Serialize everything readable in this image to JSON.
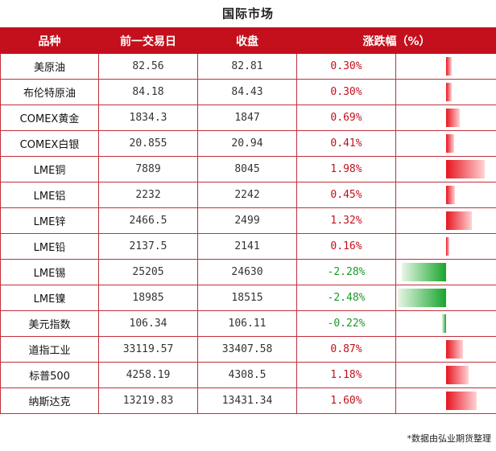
{
  "title": "国际市场",
  "headers": {
    "name": "品种",
    "prev": "前一交易日",
    "close": "收盘",
    "change": "涨跌幅（%）"
  },
  "rows": [
    {
      "name": "美原油",
      "prev": "82.56",
      "close": "82.81",
      "pct": "0.30%",
      "value": 0.3
    },
    {
      "name": "布伦特原油",
      "prev": "84.18",
      "close": "84.43",
      "pct": "0.30%",
      "value": 0.3
    },
    {
      "name": "COMEX黄金",
      "prev": "1834.3",
      "close": "1847",
      "pct": "0.69%",
      "value": 0.69
    },
    {
      "name": "COMEX白银",
      "prev": "20.855",
      "close": "20.94",
      "pct": "0.41%",
      "value": 0.41
    },
    {
      "name": "LME铜",
      "prev": "7889",
      "close": "8045",
      "pct": "1.98%",
      "value": 1.98
    },
    {
      "name": "LME铝",
      "prev": "2232",
      "close": "2242",
      "pct": "0.45%",
      "value": 0.45
    },
    {
      "name": "LME锌",
      "prev": "2466.5",
      "close": "2499",
      "pct": "1.32%",
      "value": 1.32
    },
    {
      "name": "LME铅",
      "prev": "2137.5",
      "close": "2141",
      "pct": "0.16%",
      "value": 0.16
    },
    {
      "name": "LME锡",
      "prev": "25205",
      "close": "24630",
      "pct": "-2.28%",
      "value": -2.28
    },
    {
      "name": "LME镍",
      "prev": "18985",
      "close": "18515",
      "pct": "-2.48%",
      "value": -2.48
    },
    {
      "name": "美元指数",
      "prev": "106.34",
      "close": "106.11",
      "pct": "-0.22%",
      "value": -0.22
    },
    {
      "name": "道指工业",
      "prev": "33119.57",
      "close": "33407.58",
      "pct": "0.87%",
      "value": 0.87
    },
    {
      "name": "标普500",
      "prev": "4258.19",
      "close": "4308.5",
      "pct": "1.18%",
      "value": 1.18
    },
    {
      "name": "纳斯达克",
      "prev": "13219.83",
      "close": "13431.34",
      "pct": "1.60%",
      "value": 1.6
    }
  ],
  "footnote": "*数据由弘业期货整理",
  "colors": {
    "header_bg": "#c4101c",
    "positive": "#e8141f",
    "negative": "#18a52c"
  }
}
